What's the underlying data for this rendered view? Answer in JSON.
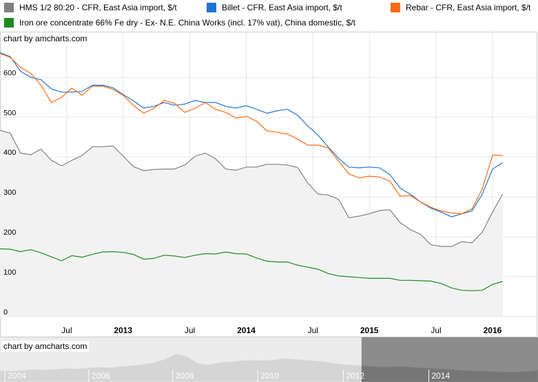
{
  "legend": [
    {
      "label": "HMS 1/2 80:20 - CFR, East Asia import, $/t",
      "color": "#808080"
    },
    {
      "label": "Billet - CFR, East Asia import, $/t",
      "color": "#1f75d3"
    },
    {
      "label": "Rebar - CFR, East Asia import, $/t",
      "color": "#ff6a14"
    },
    {
      "label": "Iron ore concentrate 66% Fe dry - Ex- N.E. China Works (incl. 17% vat), China domestic, $/t",
      "color": "#1f8a1f"
    }
  ],
  "credit_main": "chart by amcharts.com",
  "credit_scroll": "chart by amcharts.com",
  "chart_data": {
    "type": "line",
    "ylim": [
      0,
      680
    ],
    "yticks": [
      0,
      100,
      200,
      300,
      400,
      500,
      600
    ],
    "x_ticks": [
      {
        "label": "Jul",
        "x": 6.5,
        "bold": false
      },
      {
        "label": "2013",
        "x": 12,
        "bold": true
      },
      {
        "label": "Jul",
        "x": 18.5,
        "bold": false
      },
      {
        "label": "2014",
        "x": 24,
        "bold": true
      },
      {
        "label": "Jul",
        "x": 30.5,
        "bold": false
      },
      {
        "label": "2015",
        "x": 36,
        "bold": true
      },
      {
        "label": "Jul",
        "x": 42.5,
        "bold": false
      },
      {
        "label": "2016",
        "x": 48,
        "bold": true
      }
    ],
    "xlim": [
      0,
      52.3
    ],
    "series": [
      {
        "name": "HMS 1/2 80:20 - CFR, East Asia import, $/t",
        "color": "#808080",
        "fill": true,
        "values": [
          467,
          460,
          410,
          406,
          420,
          392,
          378,
          392,
          404,
          426,
          426,
          428,
          403,
          376,
          366,
          369,
          370,
          370,
          380,
          402,
          410,
          396,
          370,
          367,
          375,
          375,
          382,
          382,
          380,
          374,
          335,
          307,
          305,
          294,
          248,
          252,
          258,
          266,
          268,
          236,
          218,
          206,
          180,
          176,
          176,
          188,
          185,
          212,
          262,
          308
        ]
      },
      {
        "name": "Billet - CFR, East Asia import, $/t",
        "color": "#1f75d3",
        "fill": false,
        "values": [
          662,
          652,
          615,
          600,
          594,
          571,
          563,
          563,
          565,
          580,
          580,
          574,
          557,
          541,
          523,
          527,
          537,
          530,
          533,
          542,
          537,
          537,
          527,
          523,
          529,
          520,
          510,
          516,
          520,
          505,
          478,
          455,
          425,
          397,
          375,
          373,
          375,
          373,
          356,
          322,
          307,
          287,
          272,
          262,
          250,
          258,
          265,
          307,
          370,
          386
        ]
      },
      {
        "name": "Rebar - CFR, East Asia import, $/t",
        "color": "#ff6a14",
        "fill": false,
        "values": [
          660,
          650,
          625,
          610,
          580,
          537,
          550,
          573,
          555,
          578,
          578,
          570,
          555,
          530,
          510,
          522,
          542,
          535,
          512,
          522,
          537,
          520,
          512,
          498,
          502,
          490,
          466,
          462,
          458,
          445,
          430,
          430,
          423,
          390,
          358,
          348,
          352,
          350,
          340,
          302,
          304,
          287,
          274,
          265,
          260,
          258,
          270,
          320,
          405,
          404
        ]
      },
      {
        "name": "Iron ore concentrate 66% Fe dry - Ex- N.E. China Works (incl. 17% vat), China domestic, $/t",
        "color": "#1f8a1f",
        "fill": false,
        "values": [
          170,
          169,
          163,
          168,
          160,
          150,
          140,
          153,
          149,
          156,
          162,
          163,
          161,
          156,
          144,
          146,
          154,
          152,
          148,
          154,
          158,
          157,
          162,
          158,
          157,
          147,
          139,
          137,
          137,
          129,
          124,
          119,
          108,
          102,
          100,
          98,
          96,
          96,
          96,
          91,
          91,
          90,
          89,
          83,
          72,
          66,
          65,
          66,
          81,
          88
        ]
      }
    ]
  },
  "scroll_data": {
    "labels": [
      {
        "label": "2004",
        "x": 0.027
      },
      {
        "label": "2006",
        "x": 0.183
      },
      {
        "label": "2008",
        "x": 0.339
      },
      {
        "label": "2010",
        "x": 0.497
      },
      {
        "label": "2012",
        "x": 0.656
      },
      {
        "label": "2014",
        "x": 0.815
      }
    ],
    "selection_start": 0.672,
    "values": [
      0.3,
      0.28,
      0.3,
      0.32,
      0.31,
      0.33,
      0.35,
      0.34,
      0.36,
      0.38,
      0.37,
      0.4,
      0.42,
      0.45,
      0.5,
      0.58,
      0.72,
      0.66,
      0.48,
      0.44,
      0.5,
      0.52,
      0.55,
      0.56,
      0.55,
      0.57,
      0.6,
      0.58,
      0.56,
      0.54,
      0.5,
      0.46,
      0.44,
      0.42,
      0.4,
      0.38,
      0.4,
      0.39,
      0.37,
      0.36,
      0.34,
      0.33,
      0.3,
      0.29,
      0.28,
      0.27,
      0.26,
      0.26,
      0.27,
      0.3
    ]
  }
}
